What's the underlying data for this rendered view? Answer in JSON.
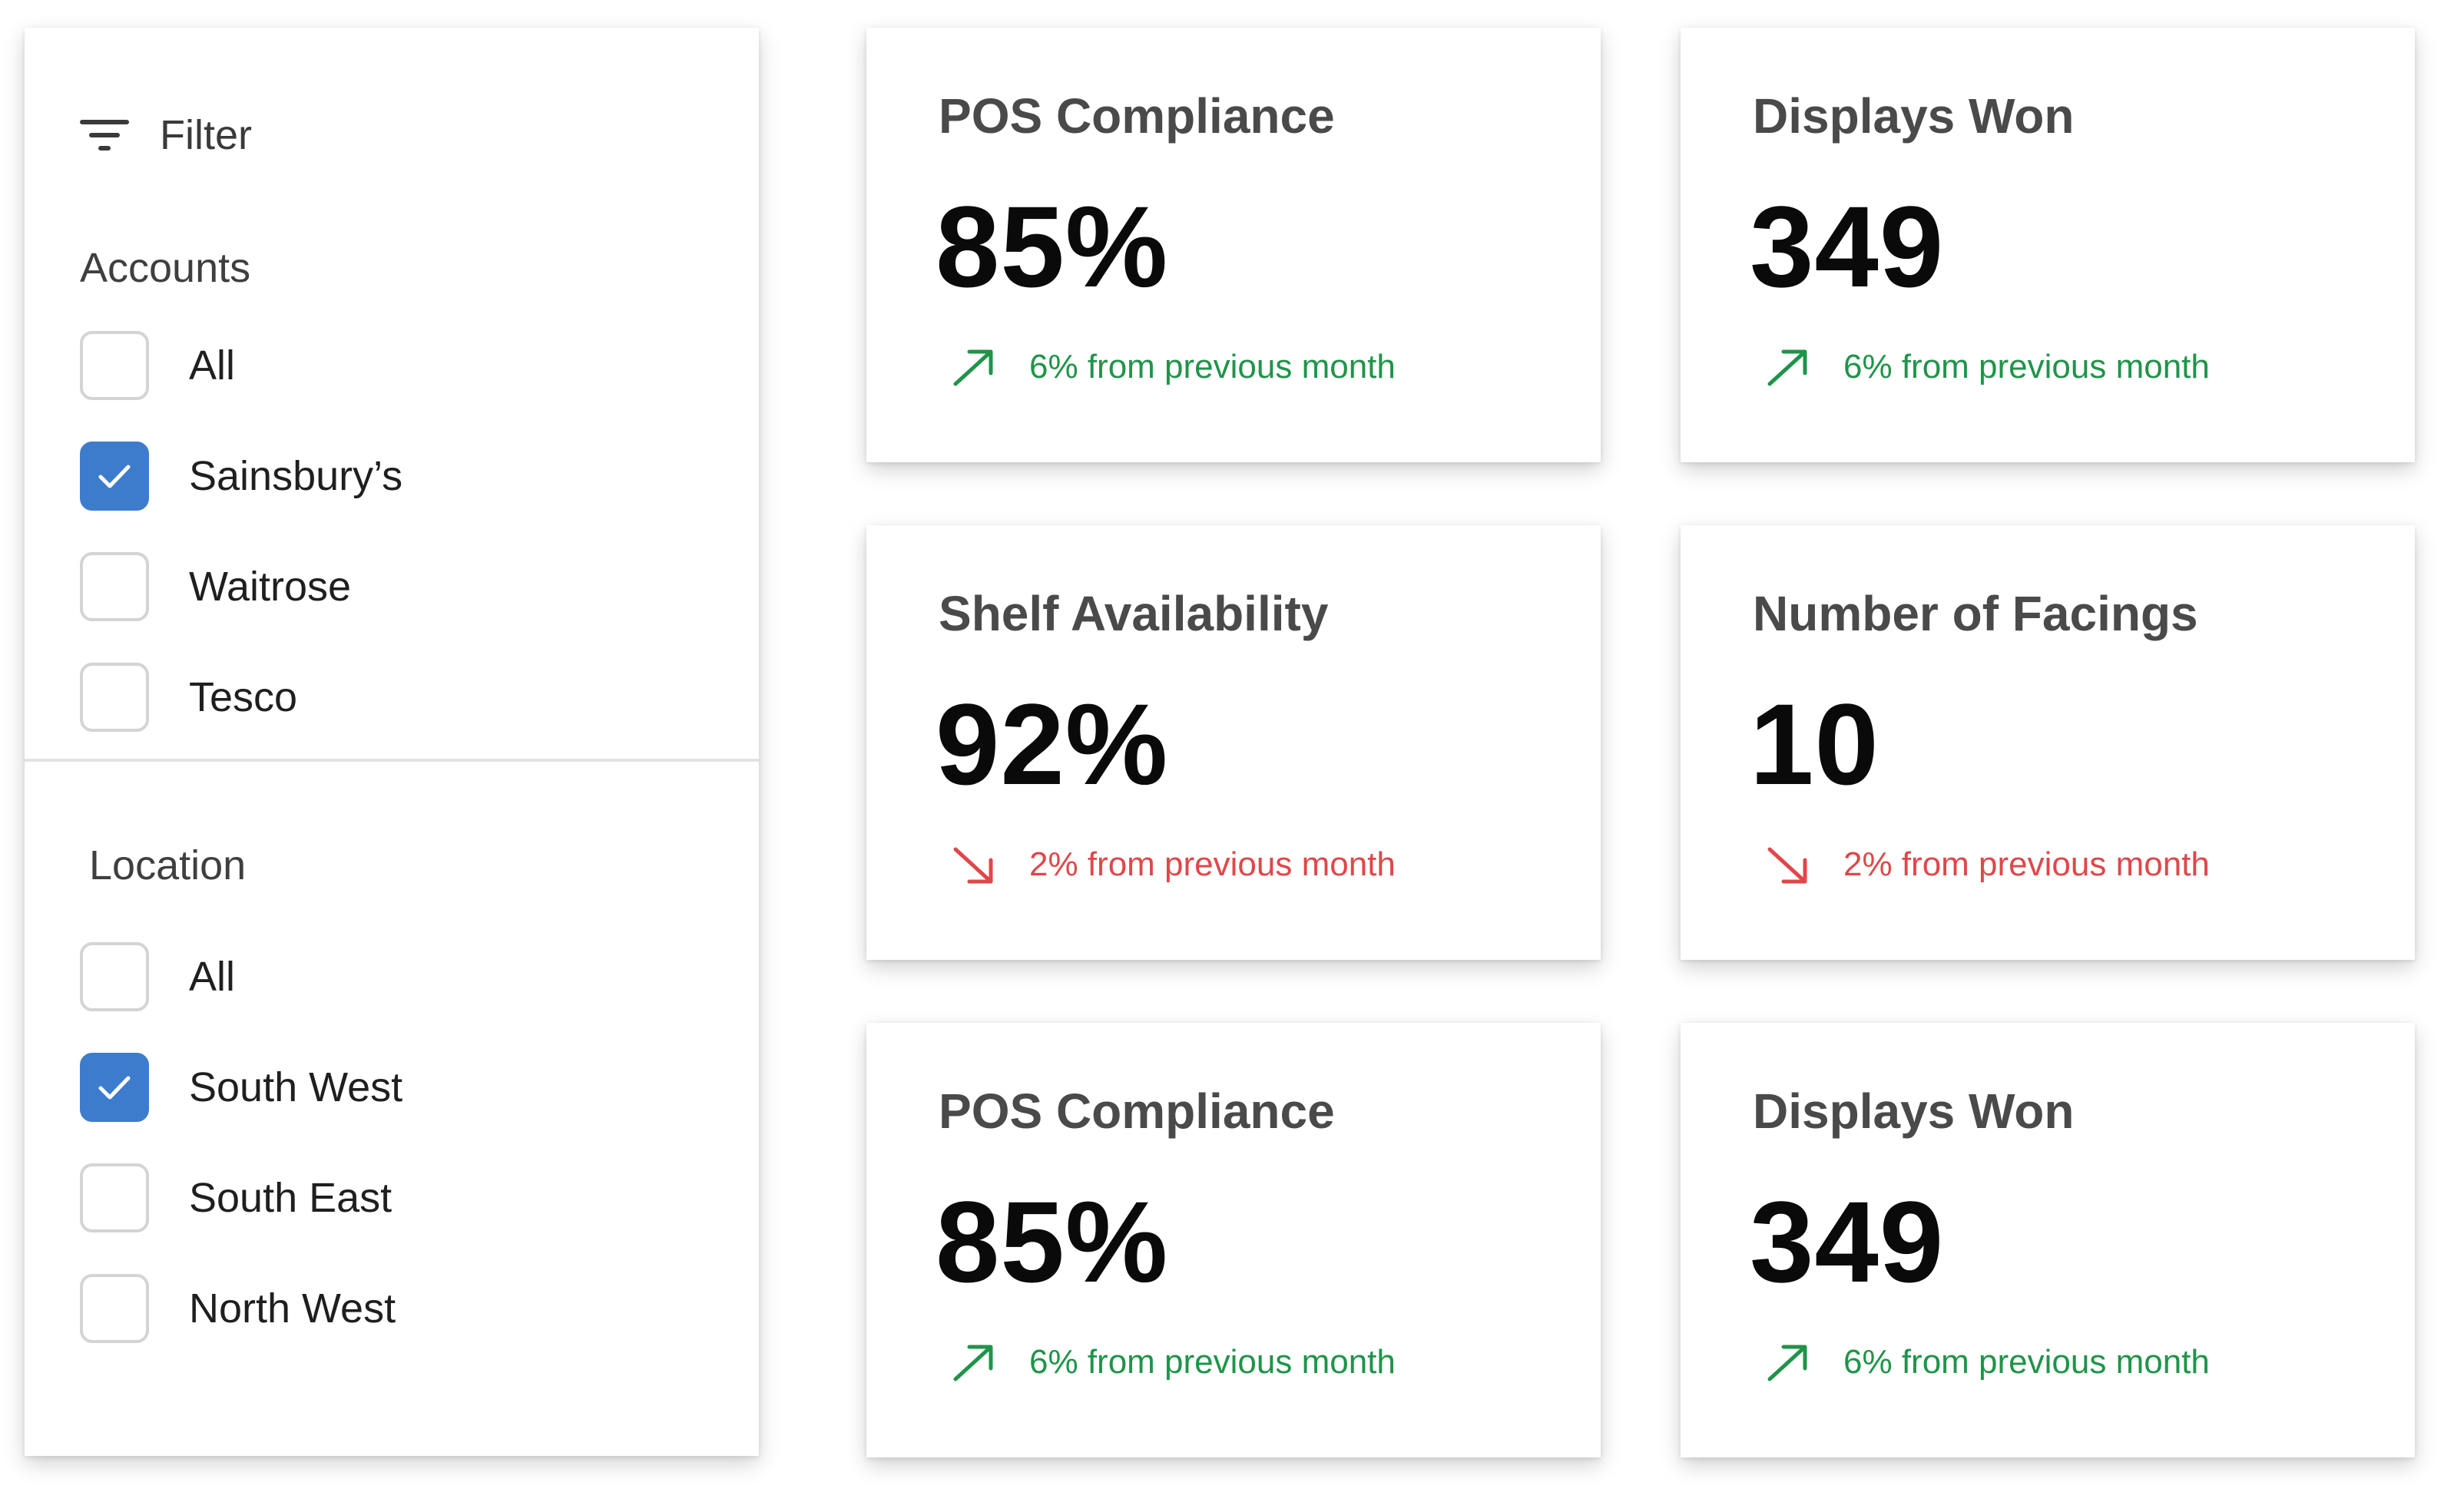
{
  "colors": {
    "checkbox_checked": "#3d7ccd",
    "trend_up": "#1f9449",
    "trend_down": "#e0474a"
  },
  "filter": {
    "title": "Filter",
    "icon": "filter-icon",
    "accounts": {
      "title": "Accounts",
      "options": [
        {
          "label": "All",
          "checked": false
        },
        {
          "label": "Sainsbury’s",
          "checked": true
        },
        {
          "label": "Waitrose",
          "checked": false
        },
        {
          "label": "Tesco",
          "checked": false
        }
      ]
    },
    "location": {
      "title": "Location",
      "options": [
        {
          "label": "All",
          "checked": false
        },
        {
          "label": "South West",
          "checked": true
        },
        {
          "label": "South East",
          "checked": false
        },
        {
          "label": "North West",
          "checked": false
        }
      ]
    }
  },
  "cards": [
    {
      "title": "POS Compliance",
      "value": "85%",
      "trend": "6% from previous month",
      "direction": "up"
    },
    {
      "title": "Displays Won",
      "value": "349",
      "trend": "6% from previous month",
      "direction": "up"
    },
    {
      "title": "Shelf Availability",
      "value": "92%",
      "trend": "2% from previous month",
      "direction": "down"
    },
    {
      "title": "Number of Facings",
      "value": "10",
      "trend": "2% from previous month",
      "direction": "down"
    },
    {
      "title": "POS Compliance",
      "value": "85%",
      "trend": "6% from previous month",
      "direction": "up"
    },
    {
      "title": "Displays Won",
      "value": "349",
      "trend": "6% from previous month",
      "direction": "up"
    }
  ]
}
